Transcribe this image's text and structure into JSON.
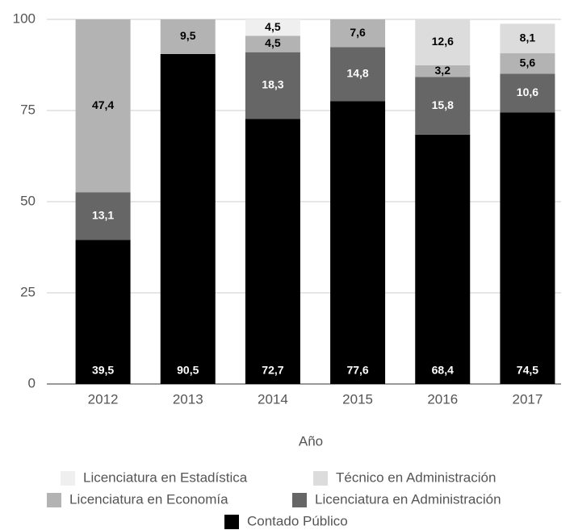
{
  "chart_data": {
    "type": "stacked_bar",
    "x_label": "Año",
    "categories": [
      "2012",
      "2013",
      "2014",
      "2015",
      "2016",
      "2017"
    ],
    "ylim": [
      0,
      100
    ],
    "yticks": [
      0,
      25,
      50,
      75,
      100
    ],
    "grid": true,
    "series": [
      {
        "name": "Contado Público",
        "color": "#000000",
        "values": [
          39.5,
          90.5,
          72.7,
          77.6,
          68.4,
          74.5
        ],
        "value_labels": [
          "39,5",
          "90,5",
          "72,7",
          "77,6",
          "68,4",
          "74,5"
        ]
      },
      {
        "name": "Licenciatura en Administración",
        "color": "#666666",
        "values": [
          13.1,
          null,
          18.3,
          14.8,
          15.8,
          10.6
        ],
        "value_labels": [
          "13,1",
          null,
          "18,3",
          "14,8",
          "15,8",
          "10,6"
        ]
      },
      {
        "name": "Licenciatura en Economía",
        "color": "#b3b3b3",
        "values": [
          47.4,
          9.5,
          4.5,
          7.6,
          3.2,
          5.6
        ],
        "value_labels": [
          "47,4",
          "9,5",
          "4,5",
          "7,6",
          "3,2",
          "5,6"
        ]
      },
      {
        "name": "Técnico en Administración",
        "color": "#dcdcdc",
        "values": [
          null,
          null,
          null,
          null,
          12.6,
          8.1
        ],
        "value_labels": [
          null,
          null,
          null,
          null,
          "12,6",
          "8,1"
        ]
      },
      {
        "name": "Licenciatura en Estadística",
        "color": "#efefef",
        "values": [
          null,
          null,
          4.5,
          null,
          null,
          null
        ],
        "value_labels": [
          null,
          null,
          "4,5",
          null,
          null,
          null
        ]
      }
    ]
  }
}
